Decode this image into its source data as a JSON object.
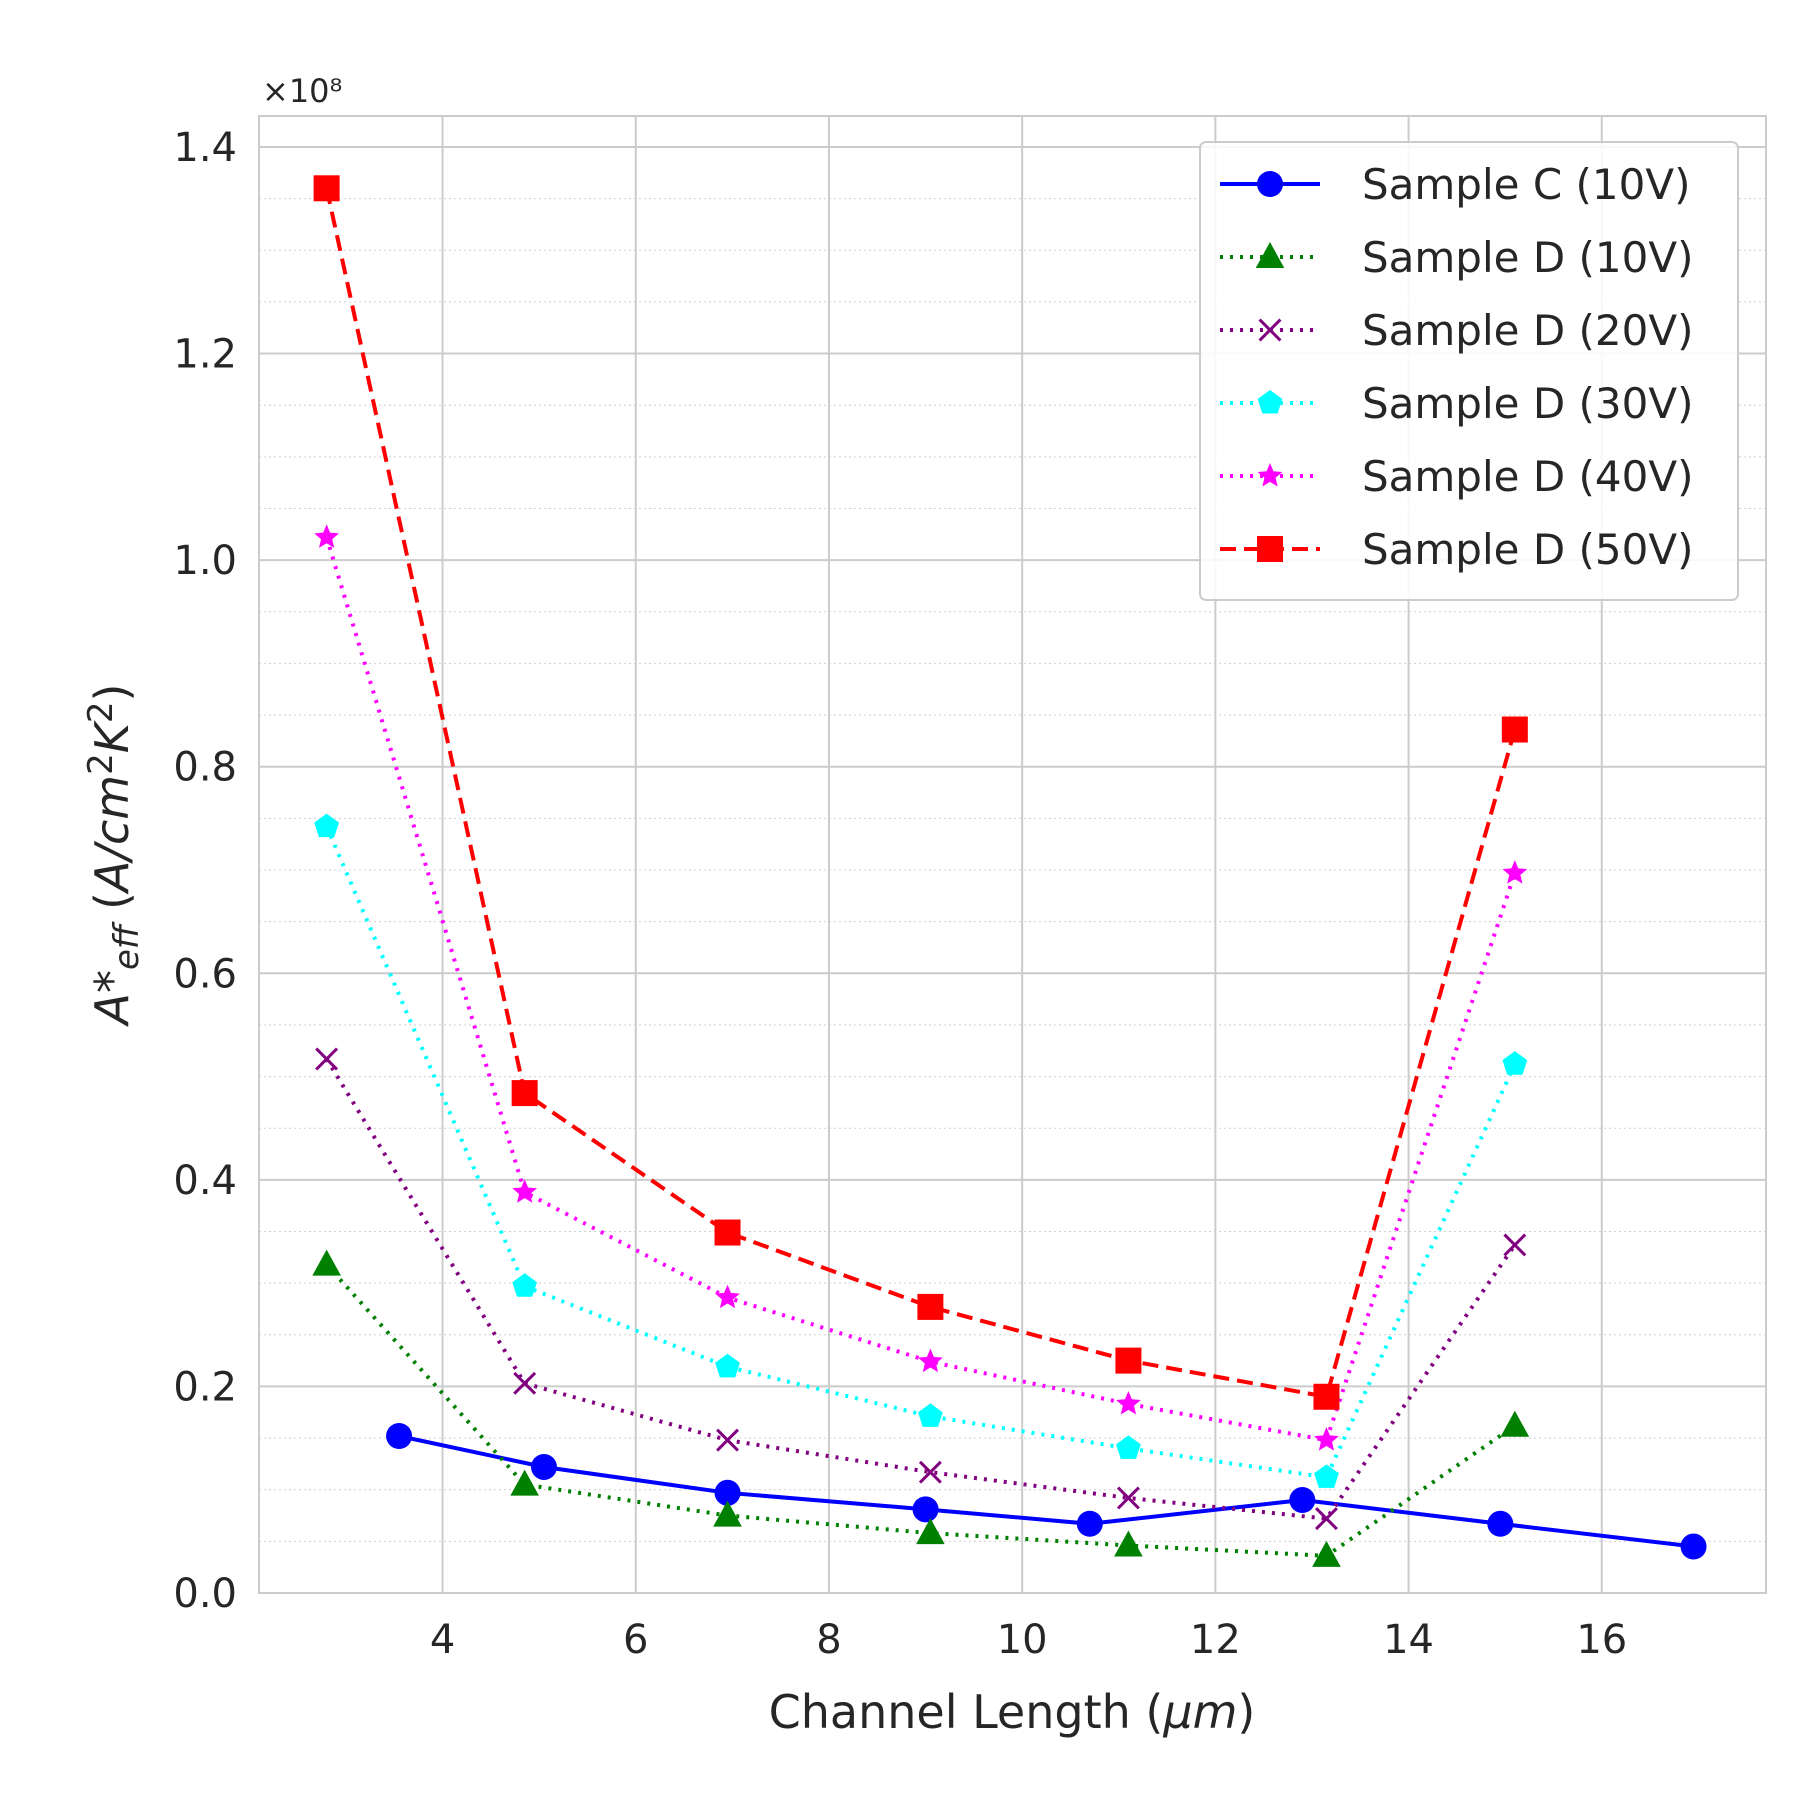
{
  "chart_data": {
    "type": "line",
    "xlabel": "Channel Length (μm)",
    "ylabel": "A*eff (A/cm²K²)",
    "y_multiplier": "×10⁸",
    "xlim": [
      2.1,
      17.7
    ],
    "ylim": [
      0,
      1.43
    ],
    "x_ticks": [
      4,
      6,
      8,
      10,
      12,
      14,
      16
    ],
    "y_ticks": [
      0.0,
      0.2,
      0.4,
      0.6,
      0.8,
      1.0,
      1.2,
      1.4
    ],
    "y_tick_labels": [
      "0.0",
      "0.2",
      "0.4",
      "0.6",
      "0.8",
      "1.0",
      "1.2",
      "1.4"
    ],
    "y_minor_step": 0.05,
    "grid": true,
    "legend_position": "top-right",
    "series": [
      {
        "name": "Sample C (10V)",
        "color": "#0000ff",
        "linestyle": "solid",
        "marker": "circle",
        "x": [
          3.55,
          5.05,
          6.95,
          9.0,
          10.7,
          12.9,
          14.95,
          16.95
        ],
        "y": [
          0.152,
          0.122,
          0.097,
          0.081,
          0.067,
          0.09,
          0.067,
          0.045
        ]
      },
      {
        "name": "Sample D (10V)",
        "color": "#008000",
        "linestyle": "dotted",
        "marker": "triangle",
        "x": [
          2.8,
          4.85,
          6.95,
          9.05,
          11.1,
          13.15,
          15.1
        ],
        "y": [
          0.318,
          0.105,
          0.075,
          0.058,
          0.046,
          0.036,
          0.162
        ]
      },
      {
        "name": "Sample D (20V)",
        "color": "#800080",
        "linestyle": "dotted",
        "marker": "x",
        "x": [
          2.8,
          4.85,
          6.95,
          9.05,
          11.1,
          13.15,
          15.1
        ],
        "y": [
          0.517,
          0.203,
          0.148,
          0.117,
          0.092,
          0.072,
          0.337
        ]
      },
      {
        "name": "Sample D (30V)",
        "color": "#00ffff",
        "linestyle": "dotted",
        "marker": "pentagon",
        "x": [
          2.8,
          4.85,
          6.95,
          9.05,
          11.1,
          13.15,
          15.1
        ],
        "y": [
          0.742,
          0.297,
          0.219,
          0.171,
          0.14,
          0.112,
          0.512
        ]
      },
      {
        "name": "Sample D (40V)",
        "color": "#ff00ff",
        "linestyle": "dotted",
        "marker": "star",
        "x": [
          2.8,
          4.85,
          6.95,
          9.05,
          11.1,
          13.15,
          15.1
        ],
        "y": [
          1.022,
          0.388,
          0.286,
          0.224,
          0.183,
          0.148,
          0.697
        ]
      },
      {
        "name": "Sample D (50V)",
        "color": "#ff0000",
        "linestyle": "dashed",
        "marker": "square",
        "x": [
          2.8,
          4.85,
          6.95,
          9.05,
          11.1,
          13.15,
          15.1
        ],
        "y": [
          1.36,
          0.484,
          0.349,
          0.277,
          0.225,
          0.19,
          0.836
        ]
      }
    ]
  }
}
